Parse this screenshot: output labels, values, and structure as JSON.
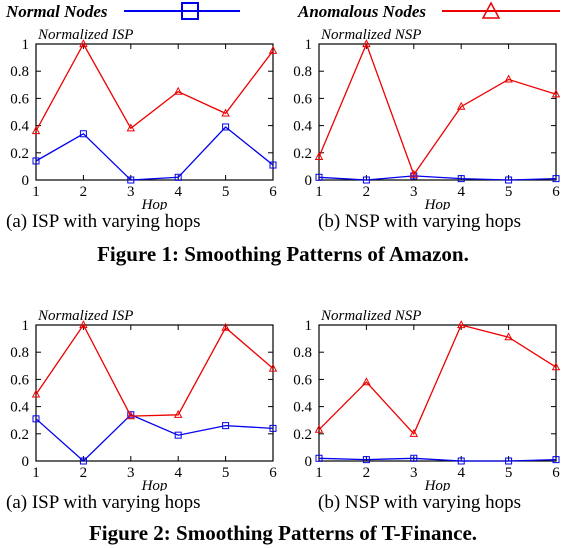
{
  "legend": {
    "normal_label": "Normal Nodes",
    "anomalous_label": "Anomalous Nodes",
    "normal_color": "#0000ee",
    "anomalous_color": "#ee0000",
    "normal_marker": "square",
    "anomalous_marker": "triangle"
  },
  "figures": [
    {
      "caption": "Figure 1: Smoothing Patterns of Amazon.",
      "subcaptions": [
        "(a) ISP with varying hops",
        "(b) NSP with varying hops"
      ]
    },
    {
      "caption": "Figure 2: Smoothing Patterns of T-Finance.",
      "subcaptions": [
        "(a) ISP with varying hops",
        "(b) NSP with varying hops"
      ]
    }
  ],
  "chart_data": [
    {
      "type": "line",
      "title": "Normalized ISP",
      "xlabel": "Hop",
      "ylabel": "",
      "x": [
        1,
        2,
        3,
        4,
        5,
        6
      ],
      "xlim": [
        1,
        6
      ],
      "ylim": [
        0,
        1
      ],
      "yticks": [
        "0",
        "0.2",
        "0.4",
        "0.6",
        "0.8",
        "1"
      ],
      "grid": false,
      "series": [
        {
          "name": "Normal Nodes",
          "color": "#0000ee",
          "marker": "square",
          "values": [
            0.14,
            0.34,
            0.0,
            0.02,
            0.39,
            0.11
          ]
        },
        {
          "name": "Anomalous Nodes",
          "color": "#ee0000",
          "marker": "triangle",
          "values": [
            0.36,
            1.0,
            0.38,
            0.65,
            0.49,
            0.95
          ]
        }
      ]
    },
    {
      "type": "line",
      "title": "Normalized NSP",
      "xlabel": "Hop",
      "ylabel": "",
      "x": [
        1,
        2,
        3,
        4,
        5,
        6
      ],
      "xlim": [
        1,
        6
      ],
      "ylim": [
        0,
        1
      ],
      "yticks": [
        "0",
        "0.2",
        "0.4",
        "0.6",
        "0.8",
        "1"
      ],
      "grid": false,
      "series": [
        {
          "name": "Normal Nodes",
          "color": "#0000ee",
          "marker": "square",
          "values": [
            0.02,
            0.0,
            0.03,
            0.01,
            0.0,
            0.01
          ]
        },
        {
          "name": "Anomalous Nodes",
          "color": "#ee0000",
          "marker": "triangle",
          "values": [
            0.17,
            1.0,
            0.04,
            0.54,
            0.74,
            0.63
          ]
        }
      ]
    },
    {
      "type": "line",
      "title": "Normalized ISP",
      "xlabel": "Hop",
      "ylabel": "",
      "x": [
        1,
        2,
        3,
        4,
        5,
        6
      ],
      "xlim": [
        1,
        6
      ],
      "ylim": [
        0,
        1
      ],
      "yticks": [
        "0",
        "0.2",
        "0.4",
        "0.6",
        "0.8",
        "1"
      ],
      "grid": false,
      "series": [
        {
          "name": "Normal Nodes",
          "color": "#0000ee",
          "marker": "square",
          "values": [
            0.31,
            0.0,
            0.34,
            0.19,
            0.26,
            0.24
          ]
        },
        {
          "name": "Anomalous Nodes",
          "color": "#ee0000",
          "marker": "triangle",
          "values": [
            0.49,
            1.0,
            0.33,
            0.34,
            0.98,
            0.68
          ]
        }
      ]
    },
    {
      "type": "line",
      "title": "Normalized NSP",
      "xlabel": "Hop",
      "ylabel": "",
      "x": [
        1,
        2,
        3,
        4,
        5,
        6
      ],
      "xlim": [
        1,
        6
      ],
      "ylim": [
        0,
        1
      ],
      "yticks": [
        "0",
        "0.2",
        "0.4",
        "0.6",
        "0.8",
        "1"
      ],
      "grid": false,
      "series": [
        {
          "name": "Normal Nodes",
          "color": "#0000ee",
          "marker": "square",
          "values": [
            0.02,
            0.01,
            0.02,
            0.0,
            0.0,
            0.01
          ]
        },
        {
          "name": "Anomalous Nodes",
          "color": "#ee0000",
          "marker": "triangle",
          "values": [
            0.23,
            0.58,
            0.2,
            1.0,
            0.91,
            0.69
          ]
        }
      ]
    }
  ]
}
